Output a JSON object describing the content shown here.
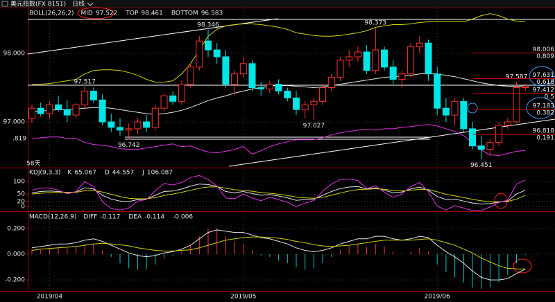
{
  "chart_data": [
    {
      "type": "candlestick",
      "title": "美元指数(FX 8151)",
      "period": "日线",
      "indicator": "BOLL(26,26,2)",
      "categories": [
        null,
        null,
        "2019/04",
        null,
        null,
        null,
        null,
        null,
        null,
        null,
        null,
        null,
        null,
        null,
        null,
        null,
        null,
        null,
        null,
        null,
        null,
        null,
        null,
        null,
        "2019/05",
        null,
        null,
        null,
        null,
        null,
        null,
        null,
        null,
        null,
        null,
        null,
        null,
        null,
        null,
        null,
        null,
        null,
        null,
        null,
        null,
        null,
        "2019/06",
        null,
        null,
        null,
        null,
        null,
        null,
        null,
        null,
        null,
        null
      ],
      "candles": [
        [
          97.05,
          97.25,
          96.98,
          97.2
        ],
        [
          97.2,
          97.28,
          97.08,
          97.12
        ],
        [
          97.12,
          97.3,
          97.05,
          97.25
        ],
        [
          97.25,
          97.38,
          97.15,
          97.18
        ],
        [
          97.18,
          97.32,
          97.0,
          97.1
        ],
        [
          97.1,
          97.28,
          97.05,
          97.25
        ],
        [
          97.25,
          97.517,
          97.2,
          97.45
        ],
        [
          97.45,
          97.5,
          97.28,
          97.32
        ],
        [
          97.32,
          97.4,
          96.95,
          97.0
        ],
        [
          97.0,
          97.12,
          96.85,
          96.92
        ],
        [
          96.92,
          97.05,
          96.8,
          96.88
        ],
        [
          96.88,
          96.98,
          96.742,
          96.9
        ],
        [
          96.9,
          97.05,
          96.82,
          97.0
        ],
        [
          97.0,
          97.1,
          96.85,
          96.92
        ],
        [
          96.92,
          97.25,
          96.88,
          97.2
        ],
        [
          97.2,
          97.42,
          97.15,
          97.38
        ],
        [
          97.38,
          97.45,
          97.25,
          97.3
        ],
        [
          97.3,
          97.6,
          97.25,
          97.55
        ],
        [
          97.55,
          97.85,
          97.5,
          97.8
        ],
        [
          97.8,
          98.25,
          97.75,
          98.18
        ],
        [
          98.18,
          98.346,
          97.95,
          98.05
        ],
        [
          98.05,
          98.15,
          97.85,
          97.95
        ],
        [
          97.95,
          98.05,
          97.5,
          97.55
        ],
        [
          97.55,
          97.75,
          97.4,
          97.7
        ],
        [
          97.7,
          97.95,
          97.65,
          97.85
        ],
        [
          97.85,
          97.9,
          97.45,
          97.5
        ],
        [
          97.5,
          97.58,
          97.38,
          97.48
        ],
        [
          97.48,
          97.6,
          97.42,
          97.55
        ],
        [
          97.55,
          97.62,
          97.4,
          97.45
        ],
        [
          97.45,
          97.5,
          97.3,
          97.35
        ],
        [
          97.35,
          97.45,
          97.1,
          97.18
        ],
        [
          97.18,
          97.3,
          97.05,
          97.25
        ],
        [
          97.25,
          97.35,
          97.027,
          97.3
        ],
        [
          97.3,
          97.55,
          97.25,
          97.5
        ],
        [
          97.5,
          97.7,
          97.45,
          97.65
        ],
        [
          97.65,
          97.95,
          97.6,
          97.9
        ],
        [
          97.9,
          98.05,
          97.8,
          97.95
        ],
        [
          97.95,
          98.1,
          97.88,
          98.02
        ],
        [
          98.02,
          98.12,
          97.7,
          97.75
        ],
        [
          97.75,
          98.373,
          97.7,
          98.05
        ],
        [
          98.05,
          98.1,
          97.75,
          97.8
        ],
        [
          97.8,
          97.9,
          97.55,
          97.62
        ],
        [
          97.62,
          97.75,
          97.5,
          97.7
        ],
        [
          97.7,
          98.15,
          97.65,
          98.1
        ],
        [
          98.1,
          98.25,
          98.0,
          98.15
        ],
        [
          98.15,
          98.2,
          97.6,
          97.7
        ],
        [
          97.7,
          97.8,
          97.1,
          97.2
        ],
        [
          97.2,
          97.35,
          97.0,
          97.1
        ],
        [
          97.1,
          97.35,
          96.95,
          97.3
        ],
        [
          97.3,
          97.35,
          96.85,
          96.9
        ],
        [
          96.9,
          97.0,
          96.6,
          96.65
        ],
        [
          96.65,
          96.8,
          96.451,
          96.6
        ],
        [
          96.6,
          96.75,
          96.5,
          96.7
        ],
        [
          96.7,
          97.0,
          96.65,
          96.95
        ],
        [
          96.95,
          97.05,
          96.9,
          97.0
        ],
        [
          97.0,
          97.587,
          96.98,
          97.5
        ],
        [
          97.5,
          97.55,
          97.45,
          97.52
        ]
      ],
      "up_color": "#ff3232",
      "down_color": "#00e5e5",
      "series": [
        {
          "name": "MID",
          "color": "#e6e6e6",
          "values": [
            97.15,
            97.16,
            97.17,
            97.18,
            97.18,
            97.19,
            97.2,
            97.21,
            97.21,
            97.2,
            97.18,
            97.16,
            97.14,
            97.12,
            97.11,
            97.12,
            97.14,
            97.17,
            97.21,
            97.26,
            97.31,
            97.35,
            97.38,
            97.42,
            97.45,
            97.48,
            97.5,
            97.52,
            97.53,
            97.53,
            97.52,
            97.51,
            97.5,
            97.51,
            97.53,
            97.55,
            97.57,
            97.59,
            97.61,
            97.63,
            97.65,
            97.66,
            97.67,
            97.68,
            97.7,
            97.71,
            97.7,
            97.68,
            97.66,
            97.63,
            97.6,
            97.57,
            97.55,
            97.53,
            97.52,
            97.52,
            97.522
          ]
        },
        {
          "name": "TOP",
          "color": "#d2d200",
          "values": [
            97.55,
            97.55,
            97.56,
            97.58,
            97.6,
            97.62,
            97.7,
            97.75,
            97.76,
            97.76,
            97.75,
            97.72,
            97.68,
            97.62,
            97.58,
            97.58,
            97.6,
            97.7,
            97.85,
            98.05,
            98.25,
            98.35,
            98.4,
            98.42,
            98.43,
            98.43,
            98.42,
            98.4,
            98.38,
            98.35,
            98.3,
            98.28,
            98.26,
            98.25,
            98.25,
            98.26,
            98.28,
            98.3,
            98.33,
            98.38,
            98.4,
            98.42,
            98.42,
            98.43,
            98.45,
            98.46,
            98.46,
            98.46,
            98.46,
            98.46,
            98.5,
            98.55,
            98.58,
            98.55,
            98.5,
            98.47,
            98.461
          ]
        },
        {
          "name": "BOTTOM",
          "color": "#e632e6",
          "values": [
            96.75,
            96.77,
            96.78,
            96.78,
            96.76,
            96.76,
            96.7,
            96.67,
            96.66,
            96.64,
            96.61,
            96.6,
            96.6,
            96.62,
            96.64,
            96.66,
            96.68,
            96.64,
            96.65,
            96.6,
            96.56,
            96.55,
            96.57,
            96.6,
            96.64,
            96.53,
            96.58,
            96.64,
            96.68,
            96.71,
            96.74,
            96.74,
            96.74,
            96.77,
            96.81,
            96.84,
            96.86,
            96.88,
            96.89,
            96.88,
            96.9,
            96.9,
            96.92,
            96.93,
            96.95,
            96.96,
            96.94,
            96.9,
            96.86,
            96.8,
            96.7,
            96.59,
            96.52,
            96.51,
            96.54,
            96.57,
            96.583
          ]
        }
      ],
      "ylim": [
        96.333,
        98.657
      ],
      "yticks": [
        {
          "value": 98,
          "label": "98.000"
        },
        {
          "value": 97,
          "label": "97.000"
        }
      ],
      "price_labels": [
        97.517,
        96.742,
        98.346,
        97.027,
        98.373,
        96.451,
        97.587
      ],
      "fib_levels": [
        {
          "value": 98.006,
          "ratio": 0.809
        },
        {
          "value": 97.631,
          "ratio": 0.618
        },
        {
          "value": 97.412,
          "ratio": 0.5
        },
        {
          "value": 97.183,
          "ratio": 0.382
        },
        {
          "value": 96.818,
          "ratio": 0.191
        }
      ],
      "edge_label": ".819",
      "duration_label": "58天"
    },
    {
      "type": "line",
      "indicator": "KDJ(9,3,3)",
      "series": [
        {
          "name": "K",
          "color": "#e6e6e6",
          "values": [
            55,
            60,
            62,
            60,
            55,
            58,
            75,
            70,
            45,
            30,
            22,
            20,
            28,
            30,
            45,
            60,
            62,
            70,
            82,
            90,
            88,
            80,
            60,
            55,
            60,
            52,
            45,
            48,
            42,
            35,
            25,
            28,
            30,
            45,
            60,
            72,
            78,
            80,
            70,
            75,
            65,
            55,
            58,
            70,
            78,
            65,
            40,
            28,
            30,
            22,
            14,
            10,
            12,
            18,
            22,
            50,
            65.067
          ]
        },
        {
          "name": "D",
          "color": "#d2d200",
          "values": [
            50,
            53,
            56,
            57,
            57,
            57,
            63,
            65,
            58,
            49,
            40,
            33,
            31,
            31,
            36,
            44,
            50,
            57,
            65,
            73,
            78,
            79,
            73,
            67,
            65,
            61,
            56,
            53,
            49,
            44,
            38,
            35,
            33,
            37,
            45,
            54,
            62,
            68,
            69,
            71,
            69,
            64,
            62,
            65,
            69,
            68,
            59,
            49,
            43,
            36,
            29,
            23,
            19,
            19,
            20,
            30,
            44.557
          ]
        },
        {
          "name": "J",
          "color": "#e632e6",
          "values": [
            65,
            74,
            74,
            66,
            51,
            60,
            99,
            80,
            19,
            -8,
            -14,
            -6,
            22,
            28,
            63,
            92,
            86,
            96,
            116,
            124,
            108,
            82,
            34,
            31,
            50,
            34,
            23,
            38,
            28,
            17,
            -1,
            14,
            24,
            61,
            90,
            108,
            110,
            104,
            72,
            83,
            57,
            37,
            50,
            80,
            96,
            59,
            2,
            -14,
            4,
            -6,
            -16,
            -16,
            -2,
            16,
            26,
            90,
            106.087
          ]
        }
      ],
      "ylim": [
        -16,
        125
      ],
      "yticks": [
        100,
        50,
        20,
        0
      ]
    },
    {
      "type": "macd",
      "indicator": "MACD(12,26,9)",
      "series": [
        {
          "name": "DIFF",
          "color": "#e6e6e6",
          "values": [
            0.05,
            0.06,
            0.07,
            0.08,
            0.08,
            0.09,
            0.11,
            0.12,
            0.1,
            0.07,
            0.04,
            0.01,
            -0.01,
            -0.02,
            -0.01,
            0.01,
            0.02,
            0.04,
            0.07,
            0.12,
            0.17,
            0.19,
            0.18,
            0.17,
            0.17,
            0.15,
            0.13,
            0.12,
            0.1,
            0.08,
            0.05,
            0.03,
            0.02,
            0.03,
            0.05,
            0.08,
            0.1,
            0.12,
            0.12,
            0.14,
            0.14,
            0.12,
            0.11,
            0.12,
            0.14,
            0.13,
            0.07,
            0.02,
            -0.02,
            -0.07,
            -0.13,
            -0.18,
            -0.2,
            -0.2,
            -0.19,
            -0.15,
            -0.117
          ]
        },
        {
          "name": "DEA",
          "color": "#d2d200",
          "values": [
            0.03,
            0.04,
            0.045,
            0.05,
            0.055,
            0.06,
            0.07,
            0.08,
            0.085,
            0.08,
            0.075,
            0.065,
            0.05,
            0.04,
            0.03,
            0.025,
            0.025,
            0.03,
            0.035,
            0.05,
            0.07,
            0.09,
            0.11,
            0.12,
            0.13,
            0.135,
            0.135,
            0.13,
            0.125,
            0.115,
            0.1,
            0.09,
            0.075,
            0.065,
            0.06,
            0.065,
            0.07,
            0.08,
            0.09,
            0.1,
            0.11,
            0.11,
            0.11,
            0.11,
            0.115,
            0.12,
            0.11,
            0.09,
            0.07,
            0.04,
            0.01,
            -0.03,
            -0.06,
            -0.09,
            -0.11,
            -0.115,
            -0.114
          ]
        }
      ],
      "histogram": {
        "up_color": "#ff3232",
        "down_color": "#00c8c8",
        "values": [
          0.04,
          0.04,
          0.05,
          0.06,
          0.05,
          0.06,
          0.08,
          0.08,
          0.03,
          -0.02,
          -0.07,
          -0.11,
          -0.12,
          -0.12,
          -0.08,
          -0.03,
          -0.01,
          0.02,
          0.07,
          0.14,
          0.2,
          0.2,
          0.14,
          0.1,
          0.08,
          0.03,
          -0.01,
          -0.02,
          -0.05,
          -0.07,
          -0.1,
          -0.12,
          -0.11,
          -0.07,
          -0.02,
          0.03,
          0.06,
          0.08,
          0.06,
          0.08,
          0.06,
          0.02,
          0,
          0.02,
          0.05,
          0.02,
          -0.08,
          -0.14,
          -0.18,
          -0.22,
          -0.26,
          -0.27,
          -0.26,
          -0.22,
          -0.16,
          -0.07,
          -0.006
        ]
      },
      "ylim": [
        -0.286,
        0.319
      ],
      "yticks": [
        {
          "value": 0.2,
          "label": "0.200"
        },
        {
          "value": 0,
          "label": "0.000"
        },
        {
          "value": -0.2,
          "label": "-0.200"
        }
      ]
    }
  ]
}
